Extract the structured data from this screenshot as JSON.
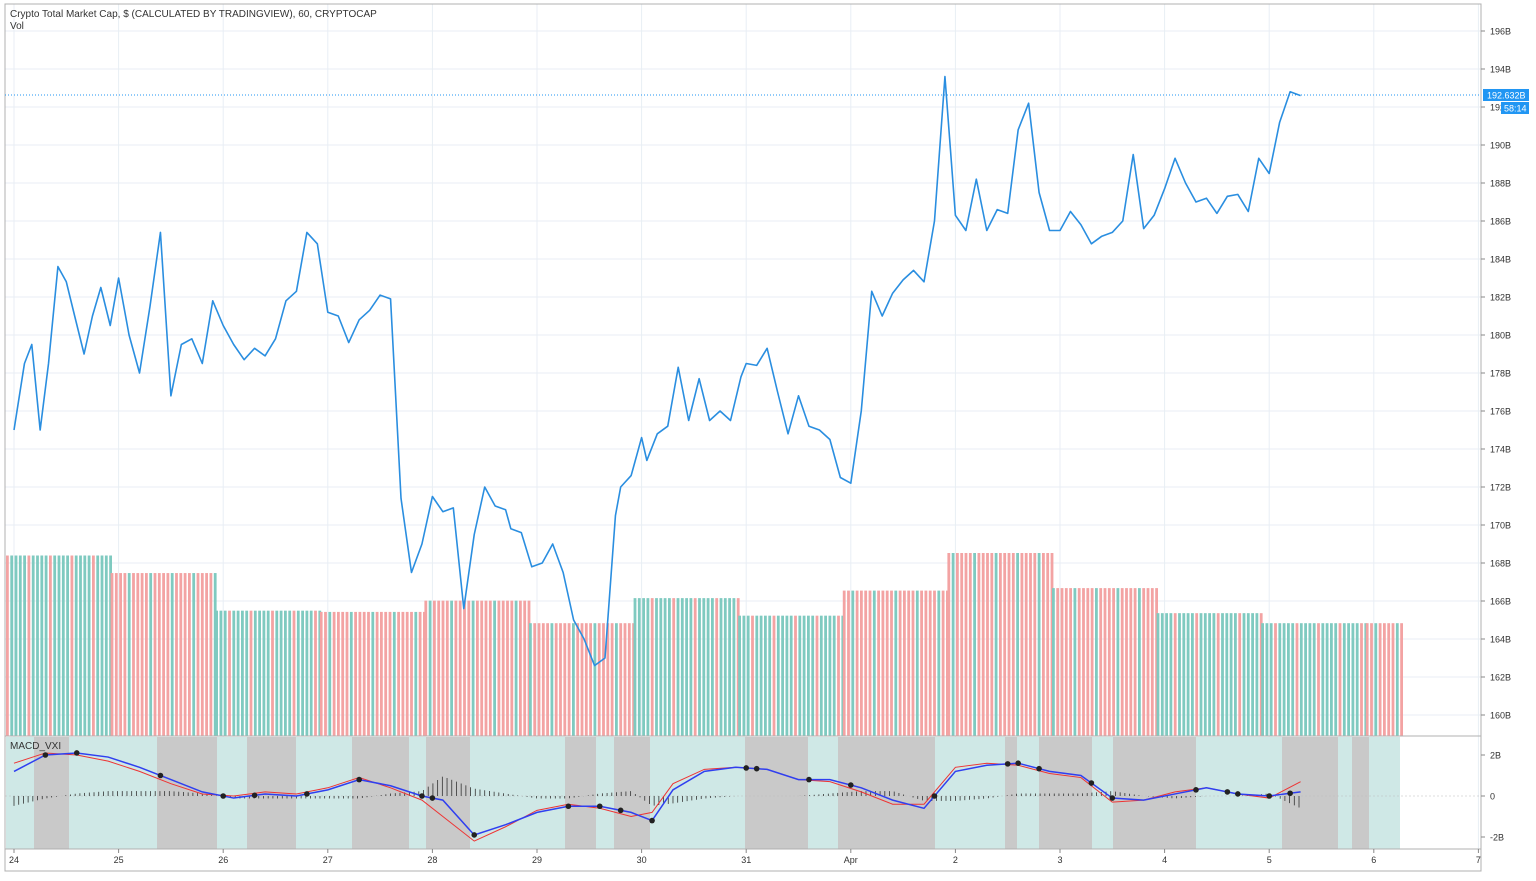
{
  "header": {
    "title": "Crypto Total Market Cap, $ (CALCULATED BY TRADINGVIEW), 60, CRYPTOCAP",
    "volume_label": "Vol",
    "indicator_label": "MACD_VXI"
  },
  "price_axis": {
    "ticks": [
      "196B",
      "194B",
      "192B",
      "190B",
      "188B",
      "186B",
      "184B",
      "182B",
      "180B",
      "178B",
      "176B",
      "174B",
      "172B",
      "170B",
      "168B",
      "166B",
      "164B",
      "162B",
      "160B"
    ],
    "last_price_label": "192.632B",
    "countdown_label": "58:14",
    "last_price": 192.632
  },
  "time_axis": {
    "labels": [
      "24",
      "25",
      "26",
      "27",
      "28",
      "29",
      "30",
      "31",
      "Apr",
      "2",
      "3",
      "4",
      "5",
      "6",
      "7"
    ]
  },
  "macd_axis": {
    "ticks": [
      "2B",
      "0",
      "-2B"
    ]
  },
  "colors": {
    "price_line": "#2a8ee0",
    "vol_up": "#7fcac0",
    "vol_down": "#f3a3a3",
    "macd_line": "#2f3ff0",
    "signal_line": "#ee3333",
    "zone_gray": "#c9c9c9",
    "zone_teal": "#cfe8e6",
    "last_price_badge": "#2196f3"
  },
  "chart_data": {
    "type": "line",
    "title": "Crypto Total Market Cap, $ (CALCULATED BY TRADINGVIEW), 60, CRYPTOCAP",
    "unit": "B USD",
    "ylim": [
      159,
      197
    ],
    "x_range_days": [
      24,
      31.2
    ],
    "series": [
      {
        "name": "Crypto Total Market Cap",
        "x": [
          24.0,
          24.1,
          24.17,
          24.25,
          24.33,
          24.42,
          24.5,
          24.58,
          24.67,
          24.75,
          24.83,
          24.92,
          25.0,
          25.1,
          25.2,
          25.3,
          25.4,
          25.5,
          25.6,
          25.7,
          25.8,
          25.9,
          26.0,
          26.1,
          26.2,
          26.3,
          26.4,
          26.5,
          26.6,
          26.7,
          26.8,
          26.9,
          27.0,
          27.1,
          27.2,
          27.3,
          27.4,
          27.5,
          27.6,
          27.7,
          27.8,
          27.9,
          28.0,
          28.1,
          28.2,
          28.3,
          28.4,
          28.5,
          28.6,
          28.7,
          28.75,
          28.85,
          28.95,
          29.05,
          29.15,
          29.25,
          29.35,
          29.45,
          29.55,
          29.65,
          29.75,
          29.8,
          29.9,
          30.0,
          30.05,
          30.15,
          30.25,
          30.35,
          30.45,
          30.55,
          30.65,
          30.75,
          30.85,
          30.95,
          31.0,
          31.1,
          31.2,
          31.3,
          31.4,
          31.5,
          31.6,
          31.7,
          31.8,
          31.9,
          32.0,
          32.1,
          32.2,
          32.3,
          32.4,
          32.5,
          32.6,
          32.7,
          32.8,
          32.9,
          33.0,
          33.1,
          33.2,
          33.3,
          33.4,
          33.5,
          33.6,
          33.7,
          33.8,
          33.9,
          34.0,
          34.1,
          34.2,
          34.3,
          34.4,
          34.5,
          34.6,
          34.7,
          34.8,
          34.9,
          35.0,
          35.1,
          35.2,
          35.3,
          35.4,
          35.5,
          35.6,
          35.7,
          35.8,
          35.9,
          36.0,
          36.1,
          36.2,
          36.3
        ],
        "y": [
          175.0,
          178.5,
          179.5,
          175.0,
          178.5,
          183.6,
          182.8,
          181.0,
          179.0,
          181.0,
          182.5,
          180.5,
          183.0,
          180.0,
          178.0,
          181.5,
          185.4,
          176.8,
          179.5,
          179.8,
          178.5,
          181.8,
          180.5,
          179.5,
          178.7,
          179.3,
          178.9,
          179.8,
          181.8,
          182.3,
          185.4,
          184.8,
          181.2,
          181.0,
          179.6,
          180.8,
          181.3,
          182.1,
          181.9,
          171.4,
          167.5,
          169.0,
          171.5,
          170.7,
          170.9,
          165.6,
          169.5,
          172.0,
          171.0,
          170.8,
          169.8,
          169.6,
          167.8,
          168.0,
          169.0,
          167.5,
          165.0,
          164.0,
          162.6,
          163.0,
          170.5,
          172.0,
          172.6,
          174.6,
          173.4,
          174.8,
          175.2,
          178.3,
          175.5,
          177.7,
          175.5,
          176.0,
          175.5,
          177.8,
          178.5,
          178.4,
          179.3,
          177.0,
          174.8,
          176.8,
          175.2,
          175.0,
          174.5,
          172.5,
          172.2,
          176.0,
          182.3,
          181.0,
          182.2,
          182.9,
          183.4,
          182.8,
          186.0,
          193.6,
          186.3,
          185.5,
          188.2,
          185.5,
          186.6,
          186.4,
          190.8,
          192.2,
          187.5,
          185.5,
          185.5,
          186.5,
          185.8,
          184.8,
          185.2,
          185.4,
          186.0,
          189.5,
          185.6,
          186.3,
          187.7,
          189.3,
          188.0,
          187.0,
          187.2,
          186.4,
          187.3,
          187.4,
          186.5,
          189.3,
          188.5,
          191.2,
          192.8,
          192.6
        ]
      }
    ],
    "volume": {
      "description": "daily volume blocks (relative heights in px-free units), colored by alternating candle direction",
      "days": [
        "24",
        "25",
        "26",
        "27",
        "28",
        "29",
        "30",
        "31",
        "Apr",
        "2",
        "3",
        "4",
        "5",
        "6"
      ],
      "values": [
        7.2,
        6.5,
        5.0,
        4.95,
        5.4,
        4.5,
        5.5,
        4.8,
        5.8,
        7.3,
        5.9,
        4.9,
        4.5,
        4.5
      ],
      "dominant_color": [
        "up",
        "down",
        "up",
        "down",
        "down",
        "down",
        "up",
        "up",
        "down",
        "down",
        "down",
        "up",
        "up",
        "down"
      ]
    },
    "macd": {
      "ylim": [
        -2.5,
        2.5
      ],
      "x": [
        24.0,
        24.3,
        24.6,
        24.9,
        25.2,
        25.5,
        25.8,
        26.1,
        26.4,
        26.7,
        27.0,
        27.3,
        27.6,
        27.9,
        28.1,
        28.4,
        28.7,
        29.0,
        29.3,
        29.6,
        29.9,
        30.1,
        30.3,
        30.6,
        30.9,
        31.2,
        31.5,
        31.8,
        32.1,
        32.4,
        32.7,
        33.0,
        33.3,
        33.6,
        33.9,
        34.2,
        34.5,
        34.8,
        35.1,
        35.4,
        35.7,
        36.0,
        36.3
      ],
      "macd_line": [
        1.2,
        2.0,
        2.1,
        1.9,
        1.4,
        0.8,
        0.2,
        -0.1,
        0.1,
        0.0,
        0.3,
        0.8,
        0.5,
        0.0,
        -0.2,
        -1.9,
        -1.4,
        -0.8,
        -0.5,
        -0.5,
        -0.8,
        -1.2,
        0.3,
        1.2,
        1.4,
        1.3,
        0.8,
        0.8,
        0.4,
        -0.2,
        -0.6,
        1.2,
        1.5,
        1.6,
        1.2,
        1.0,
        -0.1,
        -0.2,
        0.1,
        0.4,
        0.1,
        0.0,
        0.2
      ],
      "signal_line": [
        1.6,
        2.1,
        2.0,
        1.7,
        1.2,
        0.6,
        0.1,
        0.0,
        0.2,
        0.1,
        0.4,
        0.9,
        0.4,
        -0.2,
        -1.0,
        -2.2,
        -1.5,
        -0.7,
        -0.4,
        -0.6,
        -1.0,
        -0.8,
        0.6,
        1.3,
        1.4,
        1.3,
        0.8,
        0.7,
        0.2,
        -0.4,
        -0.4,
        1.4,
        1.6,
        1.5,
        1.1,
        0.9,
        -0.3,
        -0.2,
        0.2,
        0.4,
        0.1,
        -0.1,
        0.7
      ]
    }
  }
}
